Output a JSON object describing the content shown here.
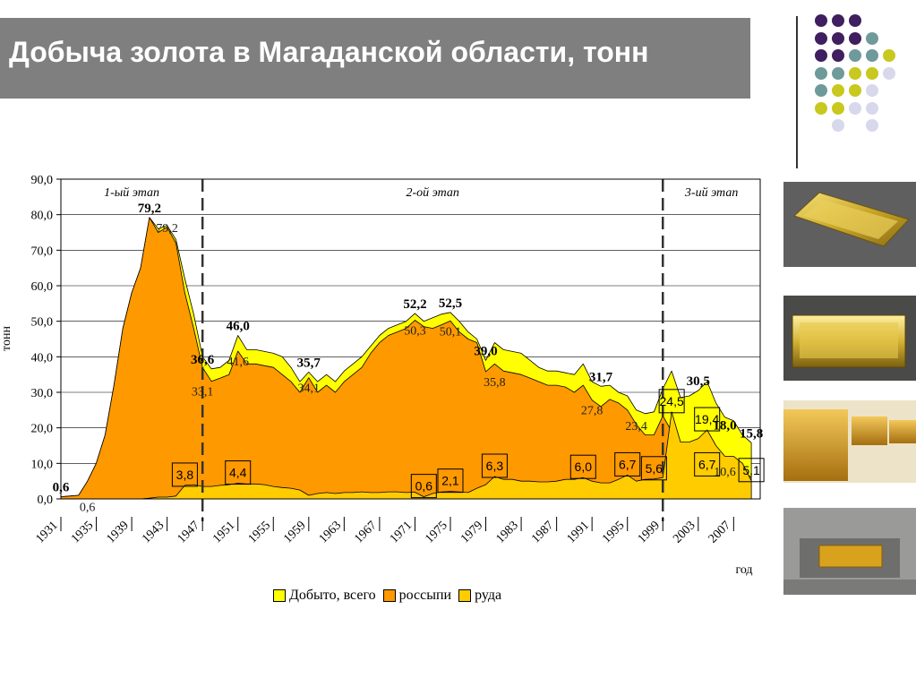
{
  "slide": {
    "title": "Добыча золота в Магаданской области, тонн"
  },
  "decor": {
    "dot_colors": [
      "#3f1f5f",
      "#6e9a9a",
      "#c8c81e",
      "#d8d8ec"
    ],
    "photos": [
      {
        "name": "gold-bar-photo-1"
      },
      {
        "name": "gold-bar-photo-2"
      },
      {
        "name": "gold-bars-stack-photo"
      },
      {
        "name": "gold-bar-mold-photo"
      }
    ]
  },
  "chart_data": {
    "type": "area",
    "ylabel": "тонн",
    "xlabel": "год",
    "ylim": [
      0,
      90
    ],
    "y_ticks": [
      "0,0",
      "10,0",
      "20,0",
      "30,0",
      "40,0",
      "50,0",
      "60,0",
      "70,0",
      "80,0",
      "90,0"
    ],
    "x_ticks": [
      "1931",
      "1935",
      "1939",
      "1943",
      "1947",
      "1951",
      "1955",
      "1959",
      "1963",
      "1967",
      "1971",
      "1975",
      "1979",
      "1983",
      "1987",
      "1991",
      "1995",
      "1999",
      "2003",
      "2007"
    ],
    "x_range": [
      1931,
      2010
    ],
    "grid": true,
    "legend_position": "bottom",
    "stages": [
      {
        "label": "1-ый этап",
        "from": 1931,
        "to": 1947
      },
      {
        "label": "2-ой этап",
        "from": 1947,
        "to": 1999
      },
      {
        "label": "3-ий этап",
        "from": 1999,
        "to": 2010
      }
    ],
    "stage_dividers": [
      1947,
      1999
    ],
    "series": [
      {
        "name": "Добыто, всего",
        "color": "#ffff00",
        "points": [
          [
            1931,
            0.6
          ],
          [
            1932,
            0.8
          ],
          [
            1933,
            1
          ],
          [
            1934,
            5
          ],
          [
            1935,
            10
          ],
          [
            1936,
            18
          ],
          [
            1937,
            32
          ],
          [
            1938,
            48
          ],
          [
            1939,
            58
          ],
          [
            1940,
            65
          ],
          [
            1941,
            79.2
          ],
          [
            1942,
            76
          ],
          [
            1943,
            77
          ],
          [
            1944,
            73
          ],
          [
            1945,
            62
          ],
          [
            1946,
            52
          ],
          [
            1947,
            40
          ],
          [
            1948,
            36.6
          ],
          [
            1949,
            37
          ],
          [
            1950,
            39
          ],
          [
            1951,
            46
          ],
          [
            1952,
            42
          ],
          [
            1953,
            42
          ],
          [
            1954,
            41.5
          ],
          [
            1955,
            41
          ],
          [
            1956,
            40
          ],
          [
            1957,
            37
          ],
          [
            1958,
            33
          ],
          [
            1959,
            35.7
          ],
          [
            1960,
            33
          ],
          [
            1961,
            35
          ],
          [
            1962,
            33
          ],
          [
            1963,
            36
          ],
          [
            1964,
            38
          ],
          [
            1965,
            40
          ],
          [
            1966,
            43
          ],
          [
            1967,
            46
          ],
          [
            1968,
            48
          ],
          [
            1969,
            49
          ],
          [
            1970,
            50
          ],
          [
            1971,
            52.2
          ],
          [
            1972,
            50
          ],
          [
            1973,
            51
          ],
          [
            1974,
            52
          ],
          [
            1975,
            52.5
          ],
          [
            1976,
            50
          ],
          [
            1977,
            47
          ],
          [
            1978,
            45
          ],
          [
            1979,
            39
          ],
          [
            1980,
            44
          ],
          [
            1981,
            42
          ],
          [
            1982,
            41.5
          ],
          [
            1983,
            41
          ],
          [
            1984,
            39
          ],
          [
            1985,
            37
          ],
          [
            1986,
            36
          ],
          [
            1987,
            36
          ],
          [
            1988,
            35.5
          ],
          [
            1989,
            35
          ],
          [
            1990,
            38
          ],
          [
            1991,
            33
          ],
          [
            1992,
            31.7
          ],
          [
            1993,
            32
          ],
          [
            1994,
            30
          ],
          [
            1995,
            29
          ],
          [
            1996,
            25
          ],
          [
            1997,
            24
          ],
          [
            1998,
            24.5
          ],
          [
            1999,
            31
          ],
          [
            2000,
            36
          ],
          [
            2001,
            28.5
          ],
          [
            2002,
            29
          ],
          [
            2003,
            30.5
          ],
          [
            2004,
            33
          ],
          [
            2005,
            27
          ],
          [
            2006,
            23
          ],
          [
            2007,
            22
          ],
          [
            2008,
            18
          ],
          [
            2009,
            15.8
          ]
        ]
      },
      {
        "name": "россыпи",
        "color": "#ff9900",
        "points": [
          [
            1931,
            0.6
          ],
          [
            1932,
            0.8
          ],
          [
            1933,
            1
          ],
          [
            1934,
            5
          ],
          [
            1935,
            10
          ],
          [
            1936,
            18
          ],
          [
            1937,
            32
          ],
          [
            1938,
            48
          ],
          [
            1939,
            58
          ],
          [
            1940,
            65
          ],
          [
            1941,
            79.2
          ],
          [
            1942,
            75
          ],
          [
            1943,
            76.5
          ],
          [
            1944,
            72
          ],
          [
            1945,
            58
          ],
          [
            1946,
            48
          ],
          [
            1947,
            37
          ],
          [
            1948,
            33.1
          ],
          [
            1949,
            34
          ],
          [
            1950,
            35
          ],
          [
            1951,
            41.6
          ],
          [
            1952,
            38
          ],
          [
            1953,
            38
          ],
          [
            1954,
            37.5
          ],
          [
            1955,
            37
          ],
          [
            1956,
            35
          ],
          [
            1957,
            33
          ],
          [
            1958,
            30
          ],
          [
            1959,
            34.1
          ],
          [
            1960,
            30
          ],
          [
            1961,
            32
          ],
          [
            1962,
            30
          ],
          [
            1963,
            33
          ],
          [
            1964,
            35
          ],
          [
            1965,
            37
          ],
          [
            1966,
            41
          ],
          [
            1967,
            44
          ],
          [
            1968,
            46
          ],
          [
            1969,
            47
          ],
          [
            1970,
            48
          ],
          [
            1971,
            50.3
          ],
          [
            1972,
            48.5
          ],
          [
            1973,
            48
          ],
          [
            1974,
            49
          ],
          [
            1975,
            50.1
          ],
          [
            1976,
            47
          ],
          [
            1977,
            45
          ],
          [
            1978,
            44
          ],
          [
            1979,
            35.8
          ],
          [
            1980,
            38
          ],
          [
            1981,
            36
          ],
          [
            1982,
            35.5
          ],
          [
            1983,
            35
          ],
          [
            1984,
            34
          ],
          [
            1985,
            33
          ],
          [
            1986,
            32
          ],
          [
            1987,
            32
          ],
          [
            1988,
            31.5
          ],
          [
            1989,
            30
          ],
          [
            1990,
            32
          ],
          [
            1991,
            27.8
          ],
          [
            1992,
            26
          ],
          [
            1993,
            28
          ],
          [
            1994,
            27
          ],
          [
            1995,
            25
          ],
          [
            1996,
            21
          ],
          [
            1997,
            18
          ],
          [
            1998,
            18
          ],
          [
            1999,
            23.4
          ],
          [
            2000,
            19
          ],
          [
            2001,
            15
          ],
          [
            2002,
            14
          ],
          [
            2003,
            13
          ],
          [
            2004,
            12.5
          ],
          [
            2005,
            11
          ],
          [
            2006,
            10.6
          ],
          [
            2007,
            9.5
          ],
          [
            2008,
            8
          ],
          [
            2009,
            6
          ]
        ]
      },
      {
        "name": "руда",
        "color": "#ffcc00",
        "points": [
          [
            1931,
            0
          ],
          [
            1940,
            0
          ],
          [
            1941,
            0.2
          ],
          [
            1942,
            0.5
          ],
          [
            1943,
            0.5
          ],
          [
            1944,
            0.8
          ],
          [
            1945,
            3.8
          ],
          [
            1946,
            4
          ],
          [
            1947,
            3.5
          ],
          [
            1948,
            3.5
          ],
          [
            1949,
            3.8
          ],
          [
            1950,
            4
          ],
          [
            1951,
            4.4
          ],
          [
            1952,
            4.2
          ],
          [
            1953,
            4.2
          ],
          [
            1954,
            4
          ],
          [
            1955,
            3.5
          ],
          [
            1956,
            3.2
          ],
          [
            1957,
            3
          ],
          [
            1958,
            2.5
          ],
          [
            1959,
            1
          ],
          [
            1960,
            1.5
          ],
          [
            1961,
            1.8
          ],
          [
            1962,
            1.5
          ],
          [
            1963,
            1.8
          ],
          [
            1964,
            1.8
          ],
          [
            1965,
            2
          ],
          [
            1966,
            1.8
          ],
          [
            1967,
            1.8
          ],
          [
            1968,
            2
          ],
          [
            1969,
            2
          ],
          [
            1970,
            1.8
          ],
          [
            1971,
            1.9
          ],
          [
            1972,
            0.6
          ],
          [
            1973,
            1.5
          ],
          [
            1974,
            2
          ],
          [
            1975,
            2.1
          ],
          [
            1976,
            2
          ],
          [
            1977,
            1.8
          ],
          [
            1978,
            3
          ],
          [
            1979,
            4
          ],
          [
            1980,
            6.3
          ],
          [
            1981,
            5.5
          ],
          [
            1982,
            5.5
          ],
          [
            1983,
            5
          ],
          [
            1984,
            5
          ],
          [
            1985,
            4.8
          ],
          [
            1986,
            4.8
          ],
          [
            1987,
            5
          ],
          [
            1988,
            5.5
          ],
          [
            1989,
            5.5
          ],
          [
            1990,
            6
          ],
          [
            1991,
            5
          ],
          [
            1992,
            4.5
          ],
          [
            1993,
            4.5
          ],
          [
            1994,
            5.5
          ],
          [
            1995,
            6.7
          ],
          [
            1996,
            5
          ],
          [
            1997,
            5.5
          ],
          [
            1998,
            5.6
          ],
          [
            1999,
            6
          ],
          [
            2000,
            24.5
          ],
          [
            2001,
            16
          ],
          [
            2002,
            16
          ],
          [
            2003,
            17
          ],
          [
            2004,
            19.4
          ],
          [
            2005,
            15
          ],
          [
            2006,
            12
          ],
          [
            2007,
            12
          ],
          [
            2008,
            10
          ],
          [
            2009,
            5.1
          ]
        ]
      }
    ],
    "labels_total": [
      {
        "x": 1931,
        "y": 0.6,
        "text": "0,6"
      },
      {
        "x": 1941,
        "y": 79.2,
        "text": "79,2"
      },
      {
        "x": 1947,
        "y": 36.6,
        "text": "36,6"
      },
      {
        "x": 1951,
        "y": 46.0,
        "text": "46,0"
      },
      {
        "x": 1959,
        "y": 35.7,
        "text": "35,7"
      },
      {
        "x": 1971,
        "y": 52.2,
        "text": "52,2"
      },
      {
        "x": 1975,
        "y": 52.5,
        "text": "52,5"
      },
      {
        "x": 1979,
        "y": 39.0,
        "text": "39,0"
      },
      {
        "x": 1992,
        "y": 31.7,
        "text": "31,7"
      },
      {
        "x": 2003,
        "y": 30.5,
        "text": "30,5"
      },
      {
        "x": 2006,
        "y": 18.0,
        "text": "18,0"
      },
      {
        "x": 2009,
        "y": 15.8,
        "text": "15,8"
      }
    ],
    "labels_placer": [
      {
        "x": 1934,
        "y": 0.6,
        "text": "0,6"
      },
      {
        "x": 1943,
        "y": 79.2,
        "text": "79,2"
      },
      {
        "x": 1947,
        "y": 33.1,
        "text": "33,1"
      },
      {
        "x": 1951,
        "y": 41.6,
        "text": "41,6"
      },
      {
        "x": 1959,
        "y": 34.1,
        "text": "34,1"
      },
      {
        "x": 1971,
        "y": 50.3,
        "text": "50,3"
      },
      {
        "x": 1975,
        "y": 50.1,
        "text": "50,1"
      },
      {
        "x": 1980,
        "y": 35.8,
        "text": "35,8"
      },
      {
        "x": 1991,
        "y": 27.8,
        "text": "27,8"
      },
      {
        "x": 1996,
        "y": 23.4,
        "text": "23,4"
      },
      {
        "x": 2006,
        "y": 10.6,
        "text": "10,6"
      }
    ],
    "labels_ore": [
      {
        "x": 1945,
        "y": 3.8,
        "text": "3,8"
      },
      {
        "x": 1951,
        "y": 4.4,
        "text": "4,4"
      },
      {
        "x": 1972,
        "y": 0.6,
        "text": "0,6"
      },
      {
        "x": 1975,
        "y": 2.1,
        "text": "2,1"
      },
      {
        "x": 1980,
        "y": 6.3,
        "text": "6,3"
      },
      {
        "x": 1990,
        "y": 6.0,
        "text": "6,0"
      },
      {
        "x": 1995,
        "y": 6.7,
        "text": "6,7"
      },
      {
        "x": 1998,
        "y": 5.6,
        "text": "5,6"
      },
      {
        "x": 2000,
        "y": 24.5,
        "text": "24,5"
      },
      {
        "x": 2004,
        "y": 19.4,
        "text": "19,4"
      },
      {
        "x": 2004,
        "y": 6.7,
        "text": "6,7"
      },
      {
        "x": 2009,
        "y": 5.1,
        "text": "5,1"
      }
    ]
  }
}
